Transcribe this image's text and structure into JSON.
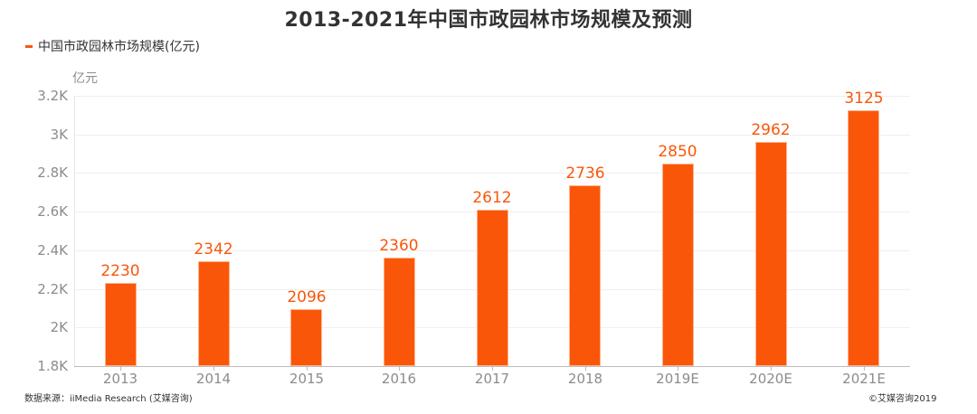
{
  "title": "2013-2021年中国市政园林市场规模及预测",
  "legend": {
    "label": "中国市政园林市场规模(亿元)",
    "color": "#fa560a"
  },
  "footer": {
    "source": "数据来源：iiMedia Research (艾媒咨询)",
    "copyright": "©艾媒咨询2019"
  },
  "colors": {
    "bar": "#fa560a",
    "value_label": "#fa560a",
    "axis_text": "#8c8c8c"
  },
  "chart_data": {
    "type": "bar",
    "title": "2013-2021年中国市政园林市场规模及预测",
    "xlabel": "",
    "ylabel": "亿元",
    "categories": [
      "2013",
      "2014",
      "2015",
      "2016",
      "2017",
      "2018",
      "2019E",
      "2020E",
      "2021E"
    ],
    "series": [
      {
        "name": "中国市政园林市场规模(亿元)",
        "values": [
          2230,
          2342,
          2096,
          2360,
          2612,
          2736,
          2850,
          2962,
          3125
        ]
      }
    ],
    "value_labels": [
      "2230",
      "2342",
      "2096",
      "2360",
      "2612",
      "2736",
      "2850",
      "2962",
      "3125"
    ],
    "ylim": [
      1800,
      3200
    ],
    "yticks": [
      1800,
      2000,
      2200,
      2400,
      2600,
      2800,
      3000,
      3200
    ],
    "ytick_labels": [
      "1.8K",
      "2K",
      "2.2K",
      "2.4K",
      "2.6K",
      "2.8K",
      "3K",
      "3.2K"
    ],
    "grid": true,
    "legend_position": "top-left"
  }
}
